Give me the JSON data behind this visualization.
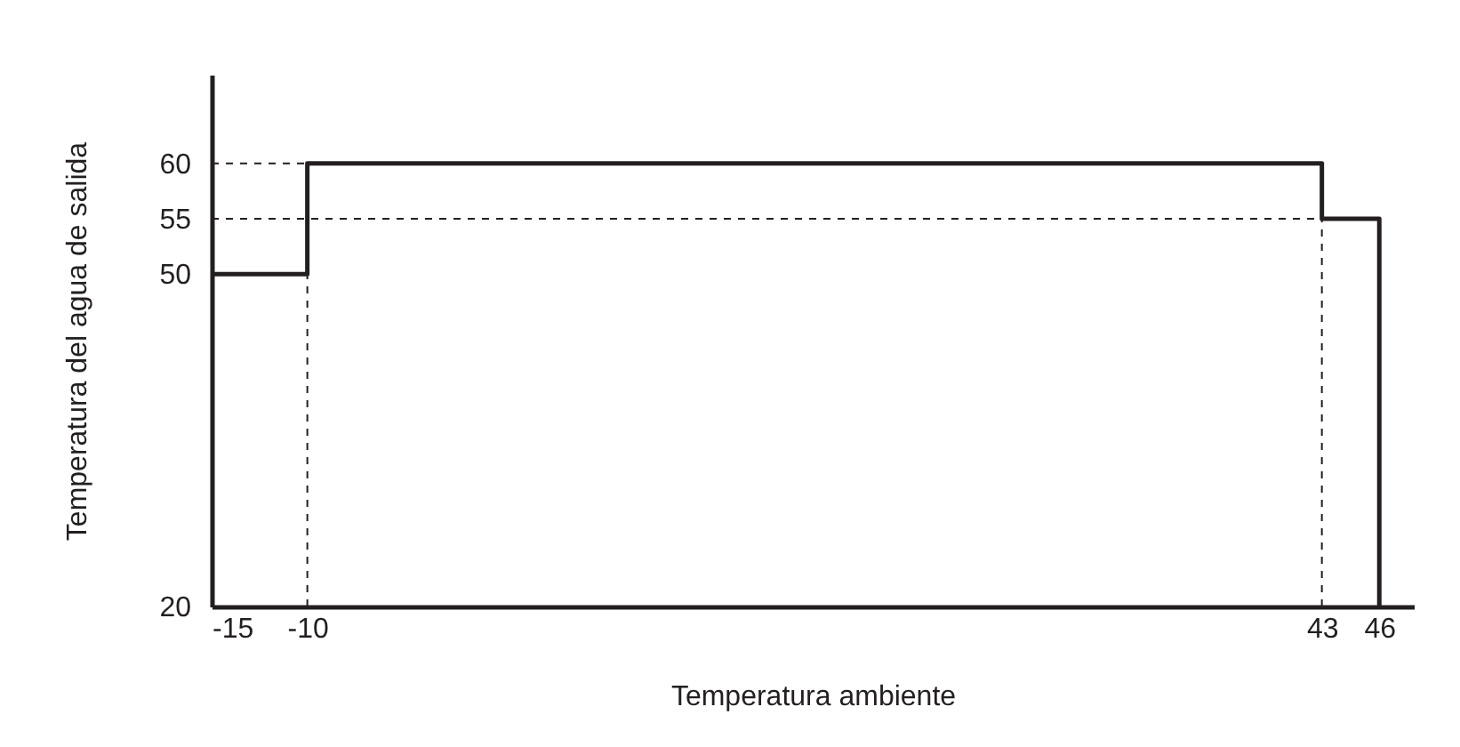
{
  "chart_data": {
    "type": "step",
    "xlabel": "Temperatura ambiente",
    "ylabel": "Temperatura del agua de salida",
    "series": [
      {
        "color": "#231f20",
        "x": [
          -15,
          -10,
          43,
          46
        ],
        "values": [
          50,
          60,
          55,
          20
        ]
      },
      {
        "type": "line",
        "line_style": "dashed",
        "color": "#231f20",
        "x": [
          -15,
          -10
        ],
        "values": [
          60,
          60
        ]
      },
      {
        "type": "line",
        "line_style": "dashed",
        "color": "#231f20",
        "x": [
          -15,
          43
        ],
        "values": [
          55,
          55
        ]
      },
      {
        "type": "line",
        "line_style": "dashed",
        "color": "#231f20",
        "x": [
          -10,
          -10
        ],
        "values": [
          20,
          50
        ]
      },
      {
        "type": "line",
        "line_style": "dashed",
        "color": "#231f20",
        "x": [
          43,
          43
        ],
        "values": [
          20,
          55
        ]
      }
    ],
    "xlim": [
      -15,
      47.8
    ],
    "ylim": [
      20,
      68
    ],
    "xticks": [
      -15,
      -10,
      43,
      46
    ],
    "yticks": [
      20,
      50,
      55,
      60
    ],
    "grid": false,
    "legend": false,
    "line_style": "solid"
  }
}
